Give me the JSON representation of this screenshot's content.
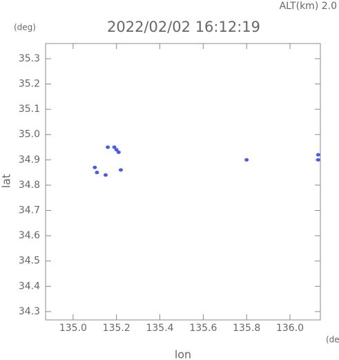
{
  "chart_data": {
    "type": "scatter",
    "title": "2022/02/02 16:12:19",
    "subtitle": "ALT(km) 2.0",
    "y_unit": "(deg)",
    "x_unit": "(deg)",
    "xlabel": "lon",
    "ylabel": "lat",
    "xlim": [
      134.873,
      136.14
    ],
    "ylim": [
      34.267,
      35.36
    ],
    "xticks": [
      {
        "value": 135,
        "label": "135.0"
      },
      135.2,
      135.4,
      135.6,
      135.8,
      {
        "value": 136,
        "label": "136.0"
      }
    ],
    "yticks": [
      34.3,
      34.4,
      34.5,
      34.6,
      34.7,
      34.8,
      34.9,
      {
        "value": 35,
        "label": "35.0"
      },
      35.1,
      35.2,
      35.3
    ],
    "color": "#4a5ae8",
    "x": [
      135.1,
      135.11,
      135.15,
      135.19,
      135.2,
      135.21,
      135.22,
      135.16,
      135.8,
      136.13,
      136.13
    ],
    "y": [
      34.87,
      34.85,
      34.84,
      34.95,
      34.94,
      34.93,
      34.86,
      34.95,
      34.9,
      34.92,
      34.9
    ]
  }
}
